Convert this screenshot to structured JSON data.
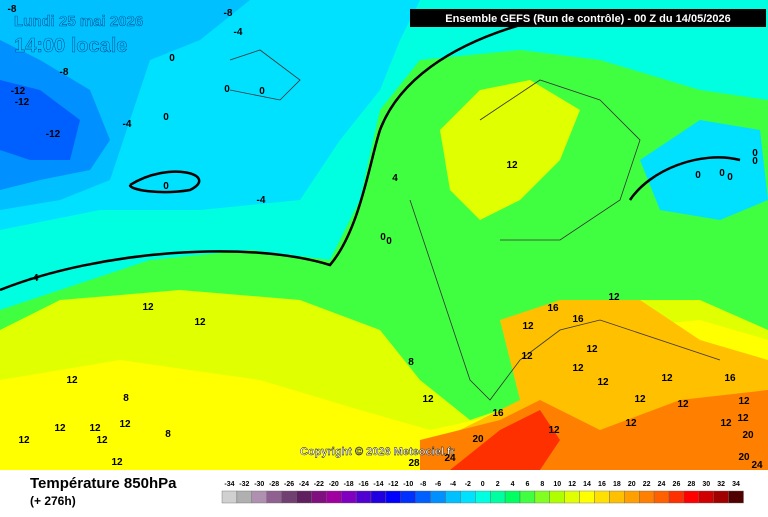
{
  "header": {
    "date": "Lundi 25 mai 2026",
    "time": "14:00 locale",
    "run": "Ensemble GEFS  (Run de contrôle)  -  00 Z du 14/05/2026"
  },
  "copyright": "Copyright © 2026 Meteociel.fr",
  "footer": {
    "title": "Température 850hPa",
    "lead": "(+ 276h)"
  },
  "legend": {
    "ticks": [
      -34,
      -32,
      -30,
      -28,
      -26,
      -24,
      -22,
      -20,
      -18,
      -16,
      -14,
      -12,
      -10,
      -8,
      -6,
      -4,
      -2,
      0,
      2,
      4,
      6,
      8,
      10,
      12,
      14,
      16,
      18,
      20,
      22,
      24,
      26,
      28,
      30,
      32,
      34
    ],
    "colors": [
      "#d0d0d0",
      "#b0b0b0",
      "#b090b0",
      "#906090",
      "#704070",
      "#602060",
      "#801080",
      "#a000a0",
      "#8000c0",
      "#5000d0",
      "#2000e0",
      "#0000ff",
      "#0030ff",
      "#0060ff",
      "#0090ff",
      "#00c0ff",
      "#00e0ff",
      "#00ffe0",
      "#00ffa0",
      "#00ff60",
      "#40ff40",
      "#80ff20",
      "#b0ff00",
      "#e0ff00",
      "#ffff00",
      "#ffe000",
      "#ffc000",
      "#ffa000",
      "#ff8000",
      "#ff6000",
      "#ff3000",
      "#ff0000",
      "#d00000",
      "#a00000",
      "#500000"
    ]
  },
  "contour_labels": [
    -8,
    -8,
    -4,
    0,
    -8,
    -12,
    -12,
    -4,
    0,
    -12,
    0,
    0,
    0,
    -4,
    4,
    0,
    0,
    -4,
    12,
    0,
    0,
    0,
    0,
    0,
    12,
    12,
    16,
    12,
    12,
    16,
    12,
    12,
    8,
    12,
    12,
    8,
    12,
    12,
    16,
    12,
    12,
    12,
    12,
    12,
    12,
    12,
    12,
    16,
    8,
    12,
    12,
    12,
    12,
    12,
    20,
    20,
    12,
    20,
    24,
    28,
    24
  ]
}
